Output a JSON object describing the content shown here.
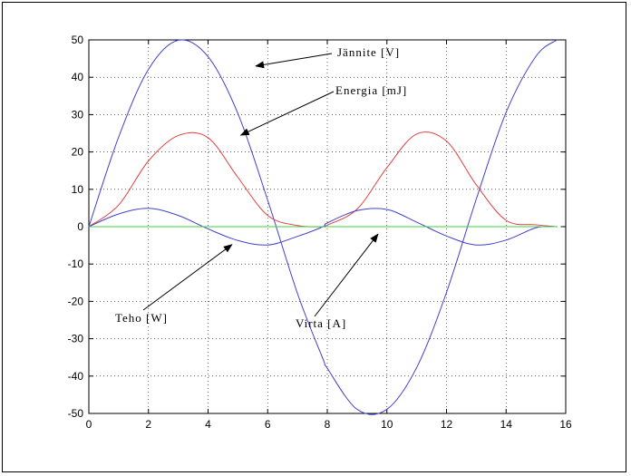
{
  "chart_data": {
    "type": "line",
    "title": "",
    "xlabel": "",
    "ylabel": "",
    "xlim": [
      0,
      16
    ],
    "ylim": [
      -50,
      50
    ],
    "x_ticks": [
      "0",
      "2",
      "4",
      "6",
      "8",
      "10",
      "12",
      "14",
      "16"
    ],
    "y_ticks": [
      "50",
      "40",
      "30",
      "20",
      "10",
      "0",
      "-10",
      "-20",
      "-30",
      "-40",
      "-50"
    ],
    "grid": true,
    "x": [
      0,
      1,
      2,
      3,
      4,
      5,
      6,
      7,
      7.854,
      8,
      9,
      10,
      11,
      12,
      13,
      14,
      15,
      15.708
    ],
    "series": [
      {
        "name": "Jännite [V]",
        "color": "#4040d0",
        "values": [
          0,
          24.0,
          42.1,
          49.9,
          45.5,
          30.3,
          7.1,
          -17.9,
          -35.4,
          -37.9,
          -48.9,
          -48.9,
          -37.7,
          -17.6,
          7.4,
          30.6,
          45.6,
          50.0
        ],
        "y_override": [
          0,
          24.0,
          42.1,
          49.9,
          45.5,
          30.3,
          7.1,
          -17.9,
          -35.4,
          -37.9,
          -48.9,
          -48.9,
          -37.7,
          -17.6,
          7.4,
          30.6,
          45.6,
          50.0
        ]
      },
      {
        "name": "Energia [mJ]",
        "color": "#e04040",
        "values": [
          0,
          5.8,
          17.6,
          24.4,
          23.8,
          13.2,
          3.0,
          0.3,
          0,
          0.4,
          4.7,
          15.8,
          24.8,
          22.9,
          11.2,
          1.7,
          0.5,
          0
        ],
        "y_override": [
          0,
          5.8,
          17.6,
          24.4,
          23.8,
          13.2,
          3.0,
          0.3,
          0,
          0.4,
          4.7,
          15.8,
          24.8,
          22.9,
          11.2,
          1.7,
          0.5,
          0
        ]
      },
      {
        "name": "Teho [W]",
        "color": "#4040d0",
        "values": [
          0,
          3.4,
          4.9,
          3.0,
          -0.6,
          -3.7,
          -4.9,
          -2.6,
          0,
          1.0,
          4.3,
          4.6,
          1.2,
          -2.5,
          -4.9,
          -3.6,
          -0.3,
          0
        ]
      },
      {
        "name": "Virta [A]",
        "color": "#40d040",
        "values": [
          0,
          0,
          0,
          0,
          0,
          0,
          0,
          0,
          0,
          0,
          0,
          0,
          0,
          0,
          0,
          0,
          0,
          0
        ]
      }
    ],
    "annotations": [
      {
        "text": "Jännite [V]",
        "target": [
          5.6,
          43
        ]
      },
      {
        "text": "Energia [mJ]",
        "target": [
          5.1,
          24.5
        ]
      },
      {
        "text": "Teho [W]",
        "target": [
          4.8,
          -4.8
        ]
      },
      {
        "text": "Virta [A]",
        "target": [
          9.7,
          -2
        ]
      }
    ]
  }
}
